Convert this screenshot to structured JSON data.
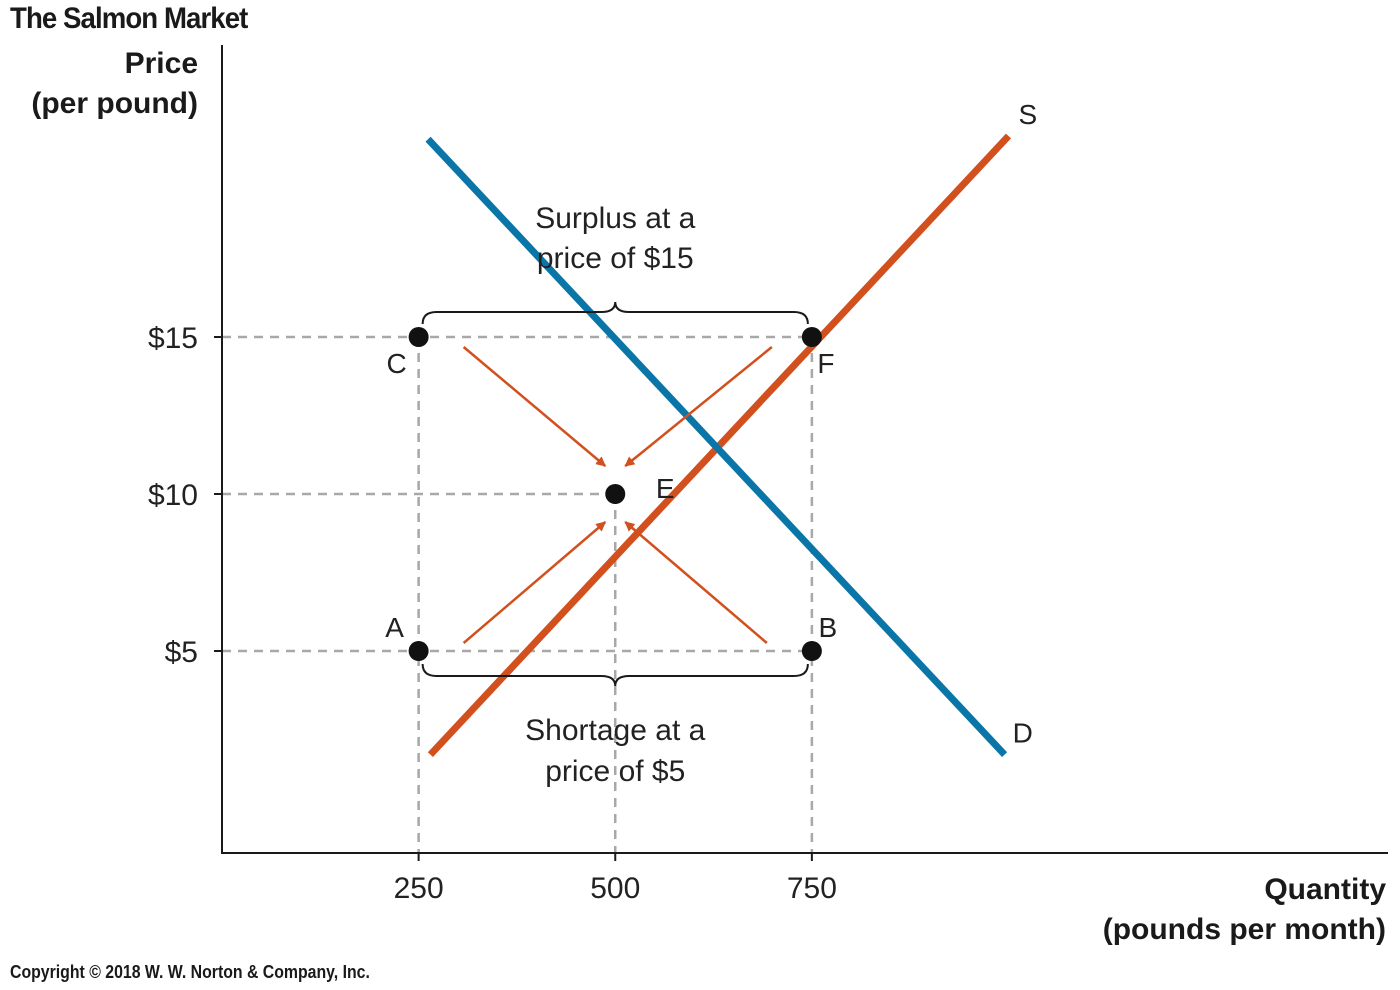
{
  "chart_data": {
    "type": "line",
    "title": "The Salmon Market",
    "ylabel_line1": "Price",
    "ylabel_line2": "(per pound)",
    "xlabel_line1": "Quantity",
    "xlabel_line2": "(pounds per month)",
    "xlim": [
      0,
      1000
    ],
    "ylim": [
      0,
      28
    ],
    "x_ticks": [
      250,
      500,
      750
    ],
    "x_tick_labels": [
      "250",
      "500",
      "750"
    ],
    "y_ticks": [
      5,
      10,
      15
    ],
    "y_tick_labels": [
      "$5",
      "$10",
      "$15"
    ],
    "series": [
      {
        "name": "S",
        "color": "#d2501e",
        "points": [
          [
            265,
            1.7
          ],
          [
            1000,
            21.4
          ]
        ]
      },
      {
        "name": "D",
        "color": "#0a76a8",
        "points": [
          [
            262,
            21.3
          ],
          [
            995,
            1.7
          ]
        ]
      }
    ],
    "points": [
      {
        "label": "A",
        "x": 250,
        "y": 5
      },
      {
        "label": "B",
        "x": 750,
        "y": 5
      },
      {
        "label": "C",
        "x": 250,
        "y": 15
      },
      {
        "label": "F",
        "x": 750,
        "y": 15
      },
      {
        "label": "E",
        "x": 500,
        "y": 10
      }
    ],
    "annotations": {
      "surplus_line1": "Surplus at a",
      "surplus_line2": "price of $15",
      "shortage_line1": "Shortage at a",
      "shortage_line2": "price of $5"
    },
    "arrow_color": "#d2501e",
    "grid": false,
    "legend": "none"
  },
  "copyright": "Copyright © 2018 W. W. Norton & Company, Inc."
}
